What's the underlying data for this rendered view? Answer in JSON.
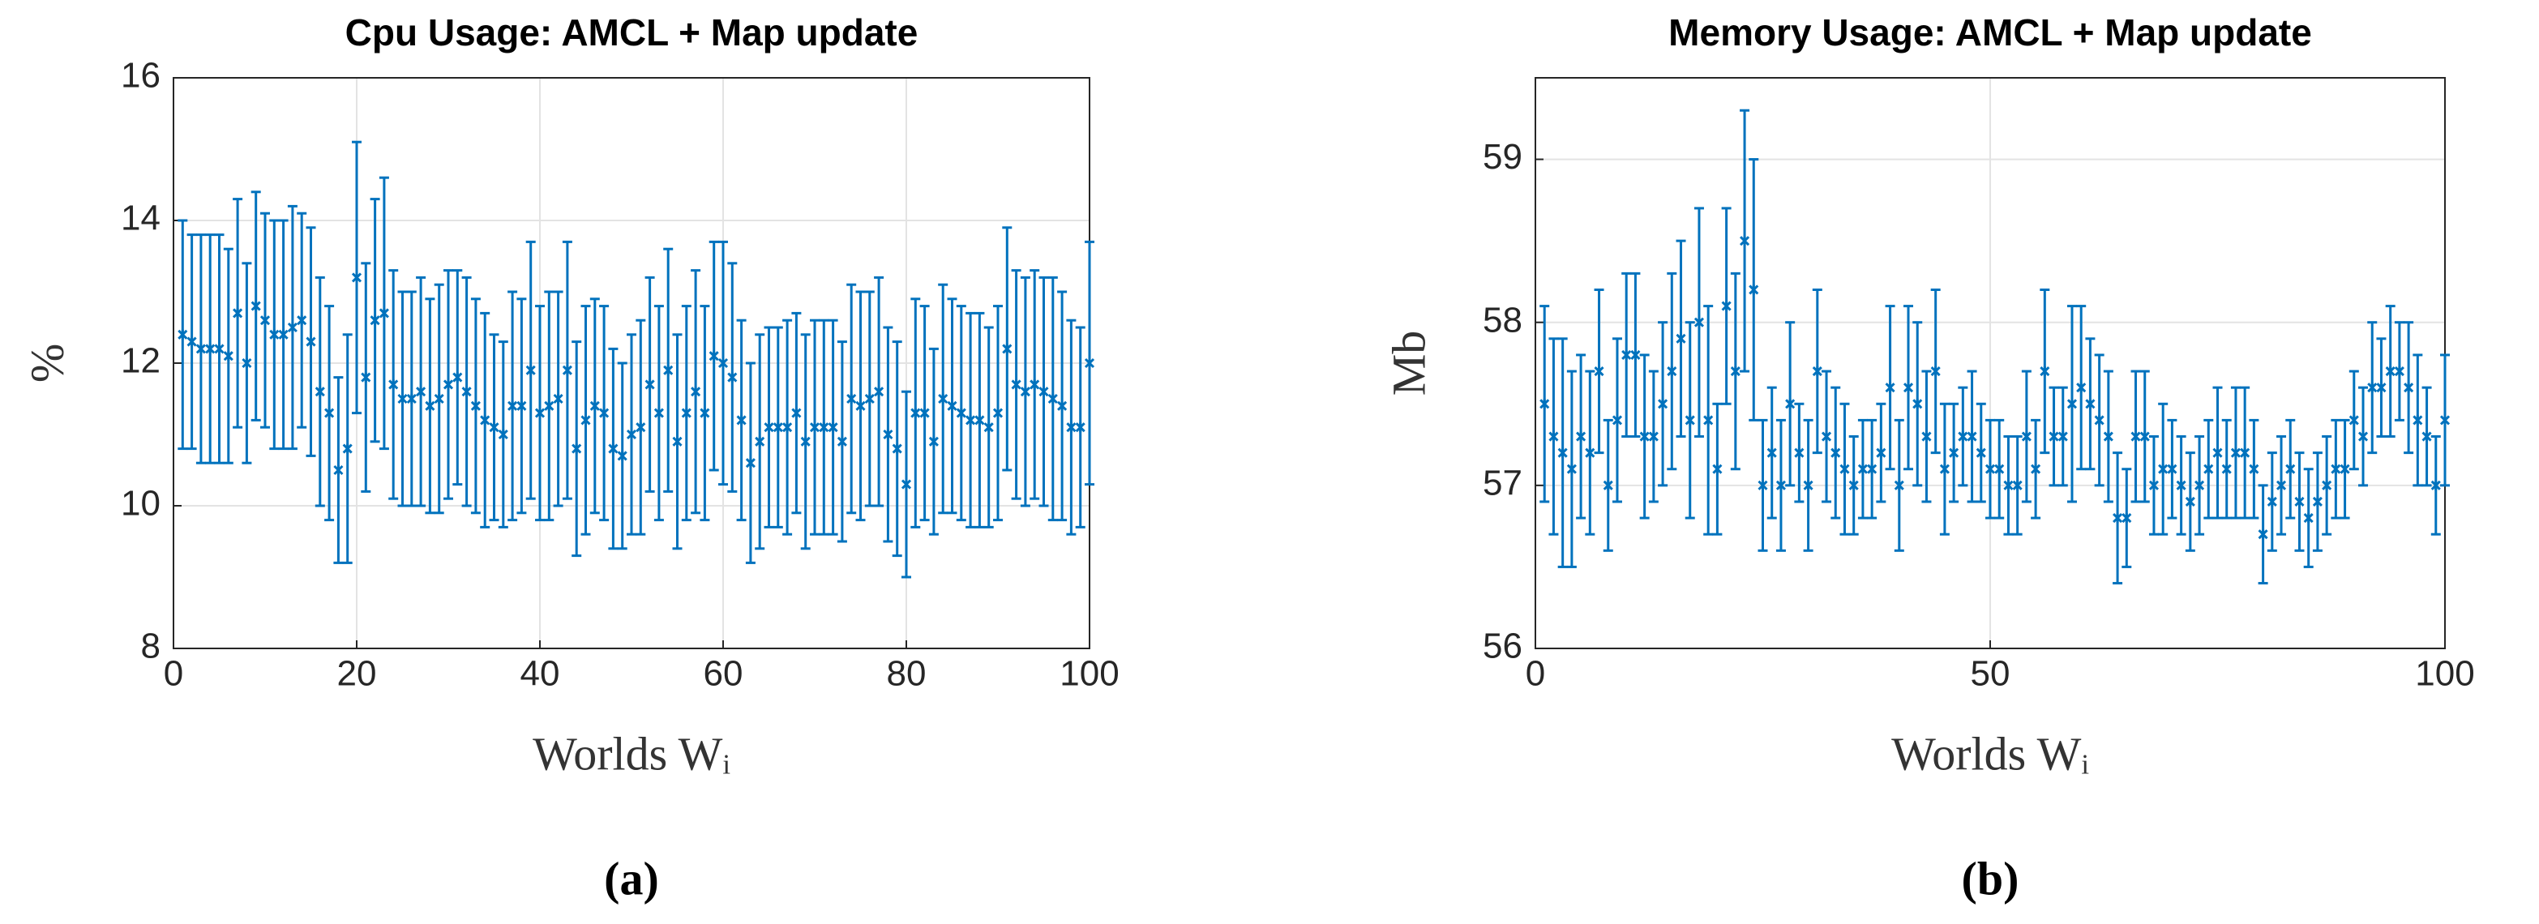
{
  "chart_data": [
    {
      "type": "errorbar",
      "title": "Cpu Usage: AMCL + Map update",
      "ylabel": "%",
      "xlabel": "Worlds Wᵢ",
      "caption": "(a)",
      "xlim": [
        0,
        100
      ],
      "xticks": [
        0,
        20,
        40,
        60,
        80,
        100
      ],
      "ylim": [
        8,
        16
      ],
      "yticks": [
        8,
        10,
        12,
        14,
        16
      ],
      "grid": true,
      "series": [
        {
          "color": "#0072BD",
          "x": [
            1,
            2,
            3,
            4,
            5,
            6,
            7,
            8,
            9,
            10,
            11,
            12,
            13,
            14,
            15,
            16,
            17,
            18,
            19,
            20,
            21,
            22,
            23,
            24,
            25,
            26,
            27,
            28,
            29,
            30,
            31,
            32,
            33,
            34,
            35,
            36,
            37,
            38,
            39,
            40,
            41,
            42,
            43,
            44,
            45,
            46,
            47,
            48,
            49,
            50,
            51,
            52,
            53,
            54,
            55,
            56,
            57,
            58,
            59,
            60,
            61,
            62,
            63,
            64,
            65,
            66,
            67,
            68,
            69,
            70,
            71,
            72,
            73,
            74,
            75,
            76,
            77,
            78,
            79,
            80,
            81,
            82,
            83,
            84,
            85,
            86,
            87,
            88,
            89,
            90,
            91,
            92,
            93,
            94,
            95,
            96,
            97,
            98,
            99,
            100
          ],
          "values": [
            12.4,
            12.3,
            12.2,
            12.2,
            12.2,
            12.1,
            12.7,
            12.0,
            12.8,
            12.6,
            12.4,
            12.4,
            12.5,
            12.6,
            12.3,
            11.6,
            11.3,
            10.5,
            10.8,
            13.2,
            11.8,
            12.6,
            12.7,
            11.7,
            11.5,
            11.5,
            11.6,
            11.4,
            11.5,
            11.7,
            11.8,
            11.6,
            11.4,
            11.2,
            11.1,
            11.0,
            11.4,
            11.4,
            11.9,
            11.3,
            11.4,
            11.5,
            11.9,
            10.8,
            11.2,
            11.4,
            11.3,
            10.8,
            10.7,
            11.0,
            11.1,
            11.7,
            11.3,
            11.9,
            10.9,
            11.3,
            11.6,
            11.3,
            12.1,
            12.0,
            11.8,
            11.2,
            10.6,
            10.9,
            11.1,
            11.1,
            11.1,
            11.3,
            10.9,
            11.1,
            11.1,
            11.1,
            10.9,
            11.5,
            11.4,
            11.5,
            11.6,
            11.0,
            10.8,
            10.3,
            11.3,
            11.3,
            10.9,
            11.5,
            11.4,
            11.3,
            11.2,
            11.2,
            11.1,
            11.3,
            12.2,
            11.7,
            11.6,
            11.7,
            11.6,
            11.5,
            11.4,
            11.1,
            11.1,
            12.0
          ],
          "errors": [
            1.6,
            1.5,
            1.6,
            1.6,
            1.6,
            1.5,
            1.6,
            1.4,
            1.6,
            1.5,
            1.6,
            1.6,
            1.7,
            1.5,
            1.6,
            1.6,
            1.5,
            1.3,
            1.6,
            1.9,
            1.6,
            1.7,
            1.9,
            1.6,
            1.5,
            1.5,
            1.6,
            1.5,
            1.6,
            1.6,
            1.5,
            1.6,
            1.5,
            1.5,
            1.3,
            1.3,
            1.6,
            1.5,
            1.8,
            1.5,
            1.6,
            1.5,
            1.8,
            1.5,
            1.6,
            1.5,
            1.5,
            1.4,
            1.3,
            1.4,
            1.5,
            1.5,
            1.5,
            1.7,
            1.5,
            1.5,
            1.7,
            1.5,
            1.6,
            1.7,
            1.6,
            1.4,
            1.4,
            1.5,
            1.4,
            1.4,
            1.5,
            1.4,
            1.5,
            1.5,
            1.5,
            1.5,
            1.4,
            1.6,
            1.6,
            1.5,
            1.6,
            1.5,
            1.5,
            1.3,
            1.6,
            1.5,
            1.3,
            1.6,
            1.5,
            1.5,
            1.5,
            1.5,
            1.4,
            1.5,
            1.7,
            1.6,
            1.6,
            1.6,
            1.6,
            1.7,
            1.6,
            1.5,
            1.4,
            1.7
          ]
        }
      ]
    },
    {
      "type": "errorbar",
      "title": "Memory Usage: AMCL + Map update",
      "ylabel": "Mb",
      "xlabel": "Worlds Wᵢ",
      "caption": "(b)",
      "xlim": [
        0,
        100
      ],
      "xticks": [
        0,
        50,
        100
      ],
      "ylim": [
        56,
        59.5
      ],
      "yticks": [
        56,
        57,
        58,
        59
      ],
      "grid": true,
      "series": [
        {
          "color": "#0072BD",
          "x": [
            1,
            2,
            3,
            4,
            5,
            6,
            7,
            8,
            9,
            10,
            11,
            12,
            13,
            14,
            15,
            16,
            17,
            18,
            19,
            20,
            21,
            22,
            23,
            24,
            25,
            26,
            27,
            28,
            29,
            30,
            31,
            32,
            33,
            34,
            35,
            36,
            37,
            38,
            39,
            40,
            41,
            42,
            43,
            44,
            45,
            46,
            47,
            48,
            49,
            50,
            51,
            52,
            53,
            54,
            55,
            56,
            57,
            58,
            59,
            60,
            61,
            62,
            63,
            64,
            65,
            66,
            67,
            68,
            69,
            70,
            71,
            72,
            73,
            74,
            75,
            76,
            77,
            78,
            79,
            80,
            81,
            82,
            83,
            84,
            85,
            86,
            87,
            88,
            89,
            90,
            91,
            92,
            93,
            94,
            95,
            96,
            97,
            98,
            99,
            100
          ],
          "values": [
            57.5,
            57.3,
            57.2,
            57.1,
            57.3,
            57.2,
            57.7,
            57.0,
            57.4,
            57.8,
            57.8,
            57.3,
            57.3,
            57.5,
            57.7,
            57.9,
            57.4,
            58.0,
            57.4,
            57.1,
            58.1,
            57.7,
            58.5,
            58.2,
            57.0,
            57.2,
            57.0,
            57.5,
            57.2,
            57.0,
            57.7,
            57.3,
            57.2,
            57.1,
            57.0,
            57.1,
            57.1,
            57.2,
            57.6,
            57.0,
            57.6,
            57.5,
            57.3,
            57.7,
            57.1,
            57.2,
            57.3,
            57.3,
            57.2,
            57.1,
            57.1,
            57.0,
            57.0,
            57.3,
            57.1,
            57.7,
            57.3,
            57.3,
            57.5,
            57.6,
            57.5,
            57.4,
            57.3,
            56.8,
            56.8,
            57.3,
            57.3,
            57.0,
            57.1,
            57.1,
            57.0,
            56.9,
            57.0,
            57.1,
            57.2,
            57.1,
            57.2,
            57.2,
            57.1,
            56.7,
            56.9,
            57.0,
            57.1,
            56.9,
            56.8,
            56.9,
            57.0,
            57.1,
            57.1,
            57.4,
            57.3,
            57.6,
            57.6,
            57.7,
            57.7,
            57.6,
            57.4,
            57.3,
            57.0,
            57.4
          ],
          "errors": [
            0.6,
            0.6,
            0.7,
            0.6,
            0.5,
            0.5,
            0.5,
            0.4,
            0.5,
            0.5,
            0.5,
            0.5,
            0.4,
            0.5,
            0.6,
            0.6,
            0.6,
            0.7,
            0.7,
            0.4,
            0.6,
            0.6,
            0.8,
            0.8,
            0.4,
            0.4,
            0.4,
            0.5,
            0.3,
            0.4,
            0.5,
            0.4,
            0.4,
            0.4,
            0.3,
            0.3,
            0.3,
            0.3,
            0.5,
            0.4,
            0.5,
            0.5,
            0.4,
            0.5,
            0.4,
            0.3,
            0.3,
            0.4,
            0.3,
            0.3,
            0.3,
            0.3,
            0.3,
            0.4,
            0.3,
            0.5,
            0.3,
            0.3,
            0.6,
            0.5,
            0.4,
            0.4,
            0.4,
            0.4,
            0.3,
            0.4,
            0.4,
            0.3,
            0.4,
            0.3,
            0.3,
            0.3,
            0.3,
            0.3,
            0.4,
            0.3,
            0.4,
            0.4,
            0.3,
            0.3,
            0.3,
            0.3,
            0.3,
            0.3,
            0.3,
            0.3,
            0.3,
            0.3,
            0.3,
            0.3,
            0.3,
            0.4,
            0.3,
            0.4,
            0.3,
            0.4,
            0.4,
            0.3,
            0.3,
            0.4
          ]
        }
      ]
    }
  ]
}
